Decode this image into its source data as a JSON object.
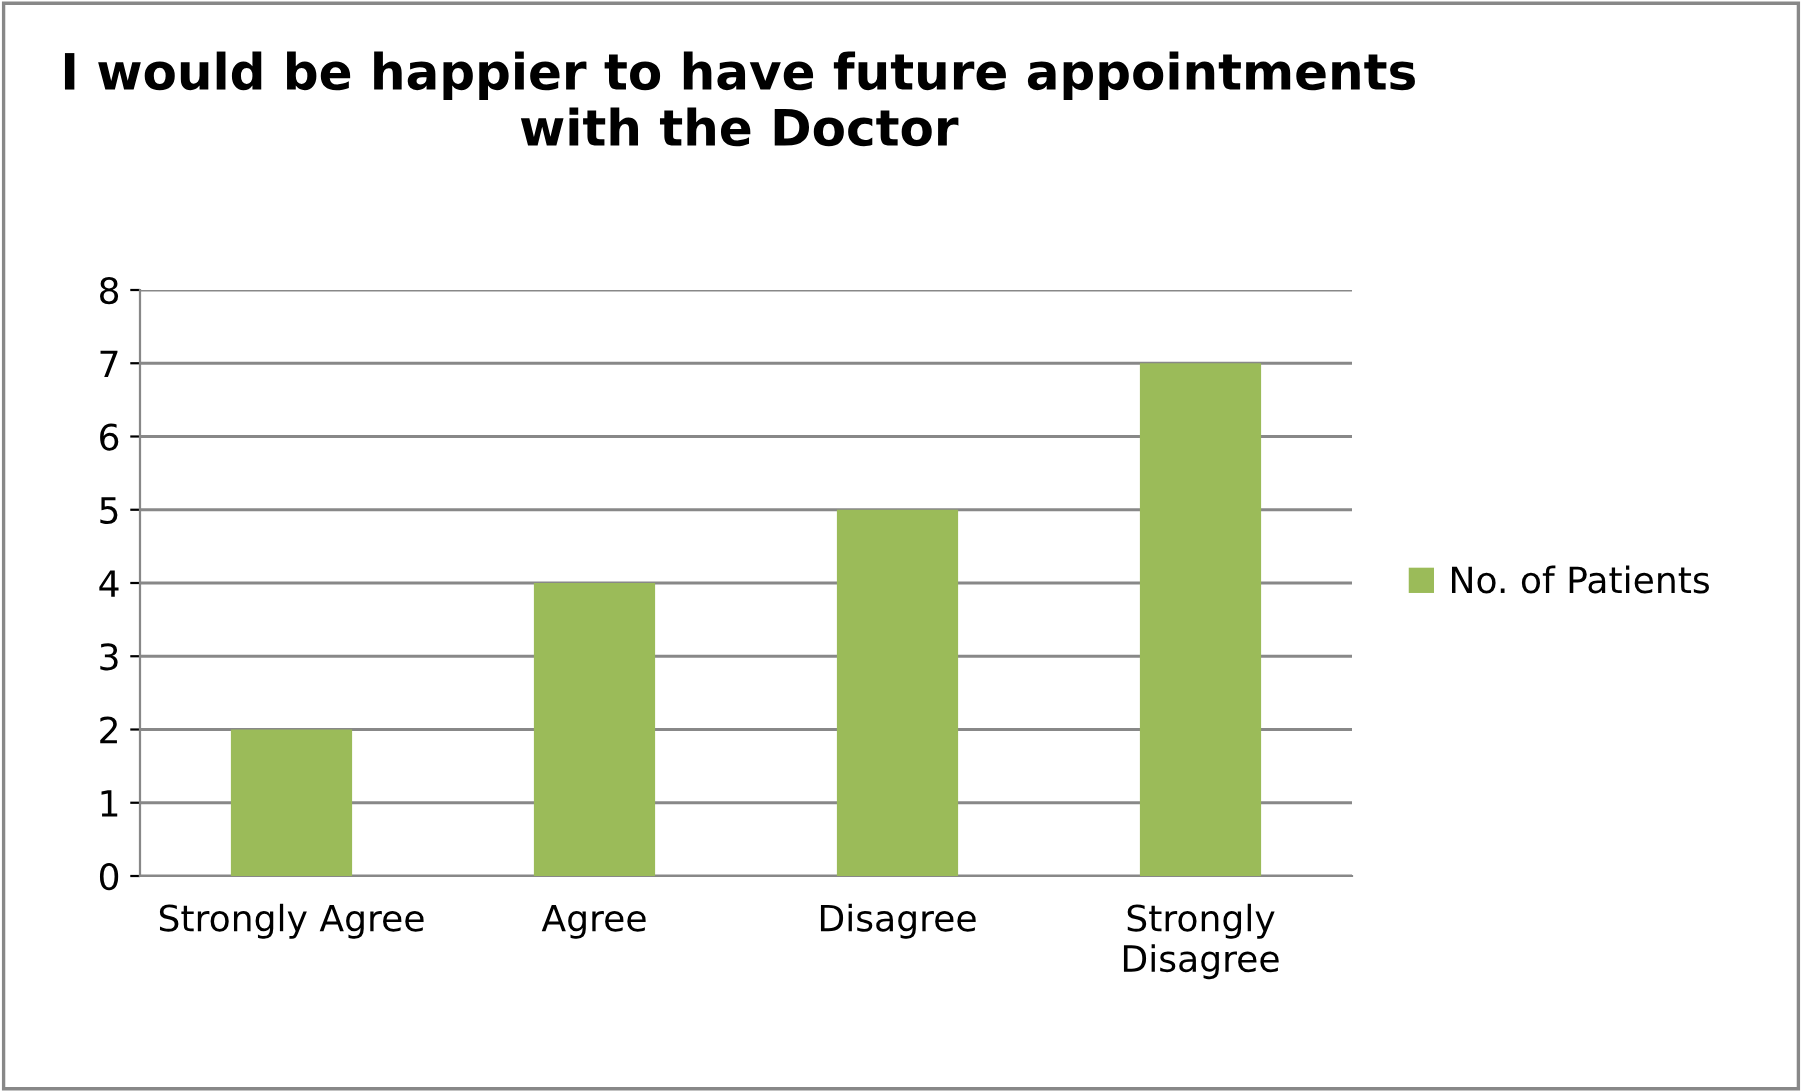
{
  "chart_data": {
    "type": "bar",
    "title": "I would be happier to have future appointments with the Doctor",
    "categories": [
      "Strongly Agree",
      "Agree",
      "Disagree",
      "Strongly Disagree"
    ],
    "series": [
      {
        "name": "No. of Patients",
        "color": "#9bbb59",
        "values": [
          2,
          4,
          5,
          7
        ]
      }
    ],
    "ylim": [
      0,
      8
    ],
    "yticks": [
      0,
      1,
      2,
      3,
      4,
      5,
      6,
      7,
      8
    ],
    "grid": "y",
    "legend": "right"
  }
}
